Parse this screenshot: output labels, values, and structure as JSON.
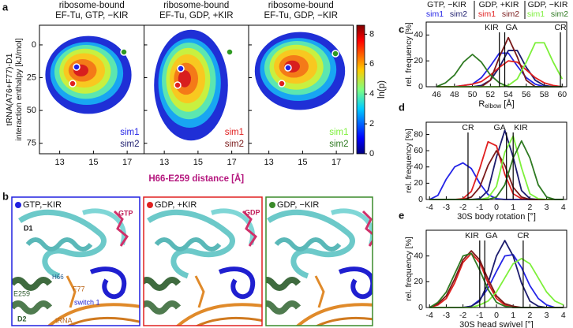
{
  "panel_a": {
    "letter": "a",
    "titles": [
      [
        "ribosome-bound",
        "EF-Tu, GTP, −KIR"
      ],
      [
        "ribosome-bound",
        "EF-Tu, GDP, +KIR"
      ],
      [
        "ribosome-bound",
        "EF-Tu, GDP, −KIR"
      ]
    ],
    "ylabel": [
      "tRNA(A76+F77)-D1",
      "interaction enthalpy [kJ/mol]"
    ],
    "xlabel": "H66-E259 distance [Å]",
    "xlim": [
      11.8,
      18
    ],
    "xticks": [
      13,
      15,
      17
    ],
    "ylim": [
      -15,
      83
    ],
    "y_inverted": true,
    "yticks": [
      0,
      25,
      50,
      75
    ],
    "colorbar_label": "ln(p)",
    "clim": [
      0,
      8.6
    ],
    "colorbar_ticks": [
      0,
      2,
      4,
      6,
      8
    ],
    "legends": [
      [
        {
          "name": "sim1",
          "color": "#2424e6"
        },
        {
          "name": "sim2",
          "color": "#1c1c6e"
        }
      ],
      [
        {
          "name": "sim1",
          "color": "#e02020"
        },
        {
          "name": "sim2",
          "color": "#7a1a1a"
        }
      ],
      [
        {
          "name": "sim1",
          "color": "#7df03a"
        },
        {
          "name": "sim2",
          "color": "#2f7a22"
        }
      ]
    ]
  },
  "panel_b": {
    "letter": "b",
    "images": [
      {
        "title": "GTP,−KIR",
        "ligand": "GTP"
      },
      {
        "title": "GDP, +KIR",
        "ligand": "GDP"
      },
      {
        "title": "GDP, −KIR"
      }
    ],
    "labels": [
      "D1",
      "H66",
      "F77",
      "E259",
      "switch 1",
      "D2",
      "tRNA"
    ]
  },
  "chart_data": [
    {
      "type": "line",
      "panel_label": "c",
      "legend_groups": [
        "GTP, −KIR",
        "GDP, +KIR",
        "GDP, −KIR"
      ],
      "xlabel": "R",
      "xlabel_subscript": "elbow",
      "xlabel_unit": " [Å]",
      "ylabel": "rel. frequency [%]",
      "xlim": [
        44.85,
        60.5
      ],
      "xticks": [
        46,
        48,
        50,
        52,
        54,
        56,
        58,
        60
      ],
      "ylim": [
        0,
        50
      ],
      "yticks": [
        0,
        20,
        40
      ],
      "x": [
        46,
        47,
        48,
        49,
        50,
        51,
        52,
        53,
        54,
        55,
        56,
        57,
        58,
        59,
        60
      ],
      "series": [
        {
          "name": "sim1",
          "color": "#2424e6",
          "values": [
            0,
            0,
            0,
            1,
            2,
            7,
            16,
            26,
            26,
            16,
            7,
            2,
            0,
            0,
            0
          ]
        },
        {
          "name": "sim2",
          "color": "#1c1c6e",
          "values": [
            0,
            0,
            0,
            0,
            0,
            1,
            5,
            15,
            28,
            28,
            15,
            5,
            1,
            0,
            0
          ]
        },
        {
          "name": "sim1",
          "color": "#e02020",
          "values": [
            0,
            0,
            0,
            1,
            2,
            4,
            9,
            15,
            20,
            19,
            13,
            7,
            3,
            1,
            0
          ]
        },
        {
          "name": "sim2",
          "color": "#7a1a1a",
          "values": [
            0,
            0,
            0,
            0,
            0,
            0,
            5,
            23,
            38,
            23,
            5,
            0,
            0,
            0,
            0
          ]
        },
        {
          "name": "sim1",
          "color": "#7df03a",
          "values": [
            0,
            0,
            0,
            0,
            0,
            0,
            0,
            0,
            1,
            6,
            19,
            34,
            34,
            19,
            6
          ]
        },
        {
          "name": "sim2",
          "color": "#2f7a22",
          "values": [
            0,
            3,
            9,
            19,
            25,
            19,
            9,
            3,
            0,
            0,
            0,
            0,
            0,
            0,
            0
          ]
        }
      ],
      "vlines": [
        {
          "label": "KIR",
          "value": 53
        },
        {
          "label": "GA",
          "value": 53.6
        },
        {
          "label": "CR",
          "value": 59.8
        }
      ]
    },
    {
      "type": "line",
      "panel_label": "d",
      "xlabel": "30S body rotation [°]",
      "ylabel": "rel. frequency [%]",
      "xlim": [
        -4.2,
        4.2
      ],
      "xticks": [
        -4,
        -3,
        -2,
        -1,
        0,
        1,
        2,
        3,
        4
      ],
      "ylim": [
        0,
        95
      ],
      "yticks": [
        0,
        20,
        40,
        60,
        80
      ],
      "x": [
        -4,
        -3.5,
        -3,
        -2.5,
        -2,
        -1.5,
        -1,
        -0.5,
        0,
        0.5,
        1,
        1.5,
        2,
        2.5,
        3,
        3.5,
        4
      ],
      "series": [
        {
          "color": "#2424e6",
          "values": [
            0,
            5,
            25,
            40,
            45,
            38,
            20,
            6,
            1,
            0,
            0,
            0,
            0,
            0,
            0,
            0,
            0
          ]
        },
        {
          "color": "#1c1c6e",
          "values": [
            0,
            0,
            0,
            0,
            0,
            0,
            1,
            11,
            52,
            85,
            52,
            11,
            1,
            0,
            0,
            0,
            0
          ]
        },
        {
          "color": "#e02020",
          "values": [
            0,
            0,
            0,
            0,
            1,
            10,
            38,
            71,
            66,
            31,
            7,
            1,
            0,
            0,
            0,
            0,
            0
          ]
        },
        {
          "color": "#7a1a1a",
          "values": [
            0,
            0,
            0,
            0,
            0,
            3,
            15,
            42,
            60,
            42,
            15,
            3,
            0,
            0,
            0,
            0,
            0
          ]
        },
        {
          "color": "#7df03a",
          "values": [
            0,
            0,
            0,
            0,
            0,
            0,
            0,
            2,
            16,
            58,
            78,
            39,
            7,
            1,
            0,
            0,
            0
          ]
        },
        {
          "color": "#2f7a22",
          "values": [
            0,
            0,
            0,
            0,
            0,
            0,
            0,
            0,
            3,
            18,
            51,
            72,
            51,
            18,
            3,
            0,
            0
          ]
        }
      ],
      "vlines": [
        {
          "label": "CR",
          "value": -1.7
        },
        {
          "label": "GA",
          "value": 0.6
        },
        {
          "label": "KIR",
          "value": 1.0
        }
      ]
    },
    {
      "type": "line",
      "panel_label": "e",
      "xlabel": "30S head swivel [°]",
      "ylabel": "rel. frequency [%]",
      "xlim": [
        -4.2,
        4.2
      ],
      "xticks": [
        -4,
        -3,
        -2,
        -1,
        0,
        1,
        2,
        3,
        4
      ],
      "ylim": [
        0,
        60
      ],
      "yticks": [
        0,
        20,
        40
      ],
      "x": [
        -4,
        -3.5,
        -3,
        -2.5,
        -2,
        -1.5,
        -1,
        -0.5,
        0,
        0.5,
        1,
        1.5,
        2,
        2.5,
        3,
        3.5,
        4
      ],
      "series": [
        {
          "color": "#2424e6",
          "values": [
            0,
            0,
            0,
            0,
            0,
            1,
            6,
            15,
            28,
            40,
            41,
            31,
            17,
            7,
            2,
            0,
            0
          ]
        },
        {
          "color": "#1c1c6e",
          "values": [
            0,
            0,
            0,
            0,
            0,
            1,
            5,
            19,
            40,
            52,
            40,
            19,
            5,
            1,
            0,
            0,
            0
          ]
        },
        {
          "color": "#e02020",
          "values": [
            0,
            2,
            7,
            19,
            35,
            42,
            35,
            19,
            7,
            2,
            0,
            0,
            0,
            0,
            0,
            0,
            0
          ]
        },
        {
          "color": "#7a1a1a",
          "values": [
            0,
            3,
            9,
            22,
            37,
            44,
            37,
            22,
            9,
            3,
            1,
            0,
            0,
            0,
            0,
            0,
            0
          ]
        },
        {
          "color": "#7df03a",
          "values": [
            0,
            0,
            0,
            0,
            0,
            0,
            2,
            5,
            12,
            23,
            34,
            38,
            34,
            23,
            12,
            5,
            2
          ]
        },
        {
          "color": "#2f7a22",
          "values": [
            0,
            4,
            12,
            26,
            40,
            42,
            29,
            14,
            4,
            1,
            0,
            0,
            0,
            0,
            0,
            0,
            0
          ]
        }
      ],
      "vlines": [
        {
          "label": "KIR",
          "value": -1.0
        },
        {
          "label": "GA",
          "value": -0.7
        },
        {
          "label": "CR",
          "value": 1.6
        }
      ]
    }
  ]
}
